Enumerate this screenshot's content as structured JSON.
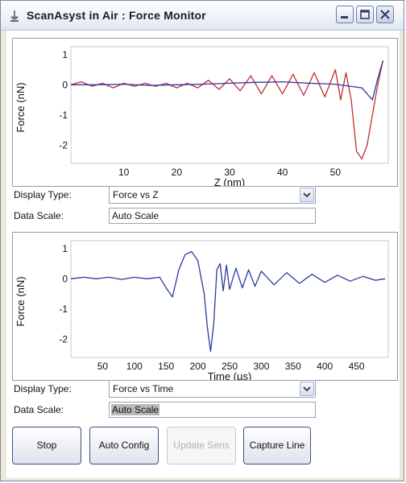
{
  "window": {
    "title": "ScanAsyst in Air : Force Monitor"
  },
  "chart_data": [
    {
      "type": "line",
      "title": "",
      "xlabel": "Z (nm)",
      "ylabel": "Force (nN)",
      "xlim": [
        0,
        60
      ],
      "ylim": [
        -2.6,
        1.1
      ],
      "xticks": [
        10,
        20,
        30,
        40,
        50
      ],
      "yticks": [
        1,
        0,
        -1,
        -2
      ],
      "grid": false,
      "series": [
        {
          "color": "#c03030",
          "x": [
            0,
            2,
            4,
            6,
            8,
            10,
            12,
            14,
            16,
            18,
            20,
            22,
            24,
            26,
            28,
            30,
            32,
            34,
            36,
            38,
            40,
            42,
            44,
            46,
            48,
            50,
            51,
            52,
            53,
            54,
            55,
            56,
            57,
            58,
            59
          ],
          "y": [
            0,
            0.1,
            -0.05,
            0.05,
            -0.1,
            0.05,
            -0.05,
            0.05,
            -0.05,
            0.05,
            -0.1,
            0.05,
            -0.1,
            0.15,
            -0.15,
            0.2,
            -0.2,
            0.3,
            -0.3,
            0.3,
            -0.3,
            0.35,
            -0.35,
            0.4,
            -0.4,
            0.5,
            -0.5,
            0.4,
            -0.5,
            -2.2,
            -2.45,
            -2.0,
            -1.0,
            0,
            0.8
          ]
        },
        {
          "color": "#2a3aa0",
          "x": [
            0,
            5,
            10,
            15,
            20,
            25,
            30,
            35,
            40,
            45,
            50,
            55,
            56,
            57,
            58,
            59
          ],
          "y": [
            0,
            0,
            0.02,
            -0.02,
            0,
            0.02,
            0.05,
            0.08,
            0.1,
            0.05,
            0.02,
            -0.1,
            -0.3,
            -0.5,
            0.2,
            0.8
          ]
        }
      ]
    },
    {
      "type": "line",
      "title": "",
      "xlabel": "Time (µs)",
      "ylabel": "Force (nN)",
      "xlim": [
        0,
        500
      ],
      "ylim": [
        -2.6,
        1.1
      ],
      "xticks": [
        50,
        100,
        150,
        200,
        250,
        300,
        350,
        400,
        450
      ],
      "yticks": [
        1,
        0,
        -1,
        -2
      ],
      "grid": false,
      "series": [
        {
          "color": "#2a3aa0",
          "x": [
            0,
            20,
            40,
            60,
            80,
            100,
            120,
            140,
            150,
            160,
            170,
            180,
            190,
            200,
            210,
            215,
            220,
            225,
            230,
            235,
            240,
            245,
            250,
            260,
            270,
            280,
            290,
            300,
            320,
            340,
            360,
            380,
            400,
            420,
            440,
            460,
            480,
            495
          ],
          "y": [
            0,
            0.05,
            0,
            0.05,
            -0.02,
            0.05,
            0,
            0.05,
            -0.3,
            -0.6,
            0.3,
            0.8,
            0.9,
            0.6,
            -0.5,
            -1.6,
            -2.4,
            -1.5,
            0.3,
            0.5,
            -0.4,
            0.45,
            -0.35,
            0.35,
            -0.3,
            0.3,
            -0.25,
            0.25,
            -0.2,
            0.2,
            -0.15,
            0.15,
            -0.12,
            0.12,
            -0.08,
            0.08,
            -0.05,
            0
          ]
        }
      ]
    }
  ],
  "top_panel": {
    "display_type_label": "Display Type:",
    "display_type_value": "Force vs Z",
    "data_scale_label": "Data Scale:",
    "data_scale_value": "Auto Scale"
  },
  "bottom_panel": {
    "display_type_label": "Display Type:",
    "display_type_value": "Force vs Time",
    "data_scale_label": "Data Scale:",
    "data_scale_value": "Auto Scale"
  },
  "buttons": {
    "stop": "Stop",
    "auto_config": "Auto Config",
    "update_sens": "Update Sens",
    "capture_line": "Capture Line"
  }
}
